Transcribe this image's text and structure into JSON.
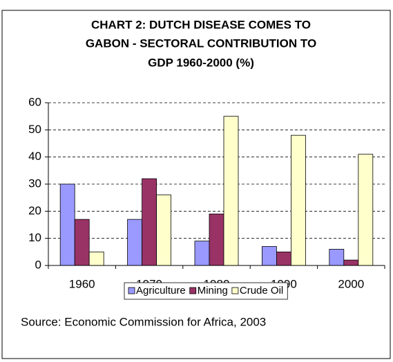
{
  "chart_data": {
    "type": "bar",
    "title": [
      "CHART 2: DUTCH DISEASE COMES TO",
      "GABON - SECTORAL CONTRIBUTION TO",
      "GDP 1960-2000 (%)"
    ],
    "categories": [
      "1960",
      "1970",
      "1980",
      "1990",
      "2000"
    ],
    "series": [
      {
        "name": "Agriculture",
        "color": "#9999ff",
        "values": [
          30,
          17,
          9,
          7,
          6
        ]
      },
      {
        "name": "Mining",
        "color": "#993366",
        "values": [
          17,
          32,
          19,
          5,
          2
        ]
      },
      {
        "name": "Crude Oil",
        "color": "#ffffcc",
        "values": [
          5,
          26,
          55,
          48,
          41
        ]
      }
    ],
    "ylim": [
      0,
      60
    ],
    "yticks": [
      0,
      10,
      20,
      30,
      40,
      50,
      60
    ],
    "grid": true,
    "legend": "bottom",
    "source": "Source: Economic Commission for Africa, 2003"
  }
}
